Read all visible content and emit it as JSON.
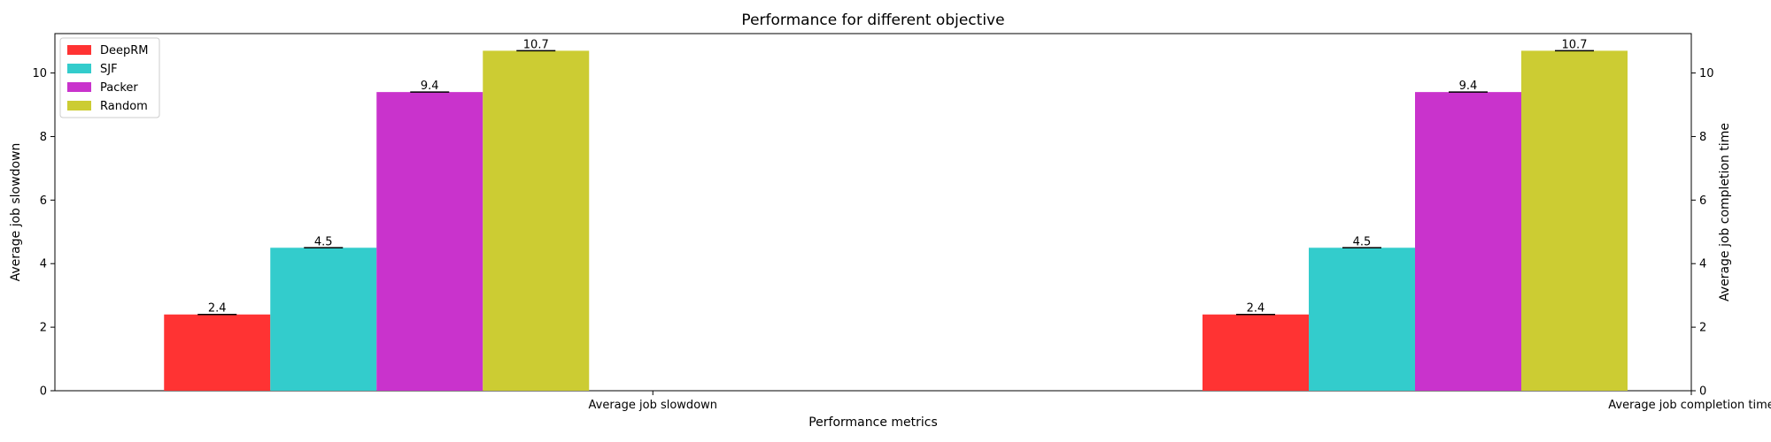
{
  "chart_data": {
    "type": "bar",
    "title": "Performance for different objective",
    "xlabel": "Performance metrics",
    "ylabel_left": "Average job slowdown",
    "ylabel_right": "Average job completion time",
    "categories": [
      "Average job slowdown",
      "Average job completion time"
    ],
    "series": [
      {
        "name": "DeepRM",
        "color": "#ff3333",
        "values": [
          2.4,
          2.4
        ]
      },
      {
        "name": "SJF",
        "color": "#33cccc",
        "values": [
          4.5,
          4.5
        ]
      },
      {
        "name": "Packer",
        "color": "#c933cc",
        "values": [
          9.4,
          9.4
        ]
      },
      {
        "name": "Random",
        "color": "#cccc33",
        "values": [
          10.7,
          10.7
        ]
      }
    ],
    "data_labels": [
      [
        "2.4",
        "4.5",
        "9.4",
        "10.7"
      ],
      [
        "2.4",
        "4.5",
        "9.4",
        "10.7"
      ]
    ],
    "ylim": [
      0,
      11.24
    ],
    "yticks": [
      "0",
      "2",
      "4",
      "6",
      "8",
      "10"
    ],
    "ytick_values": [
      0,
      2,
      4,
      6,
      8,
      10
    ],
    "error_bars": true,
    "grid": false,
    "legend_position": "top-left"
  }
}
